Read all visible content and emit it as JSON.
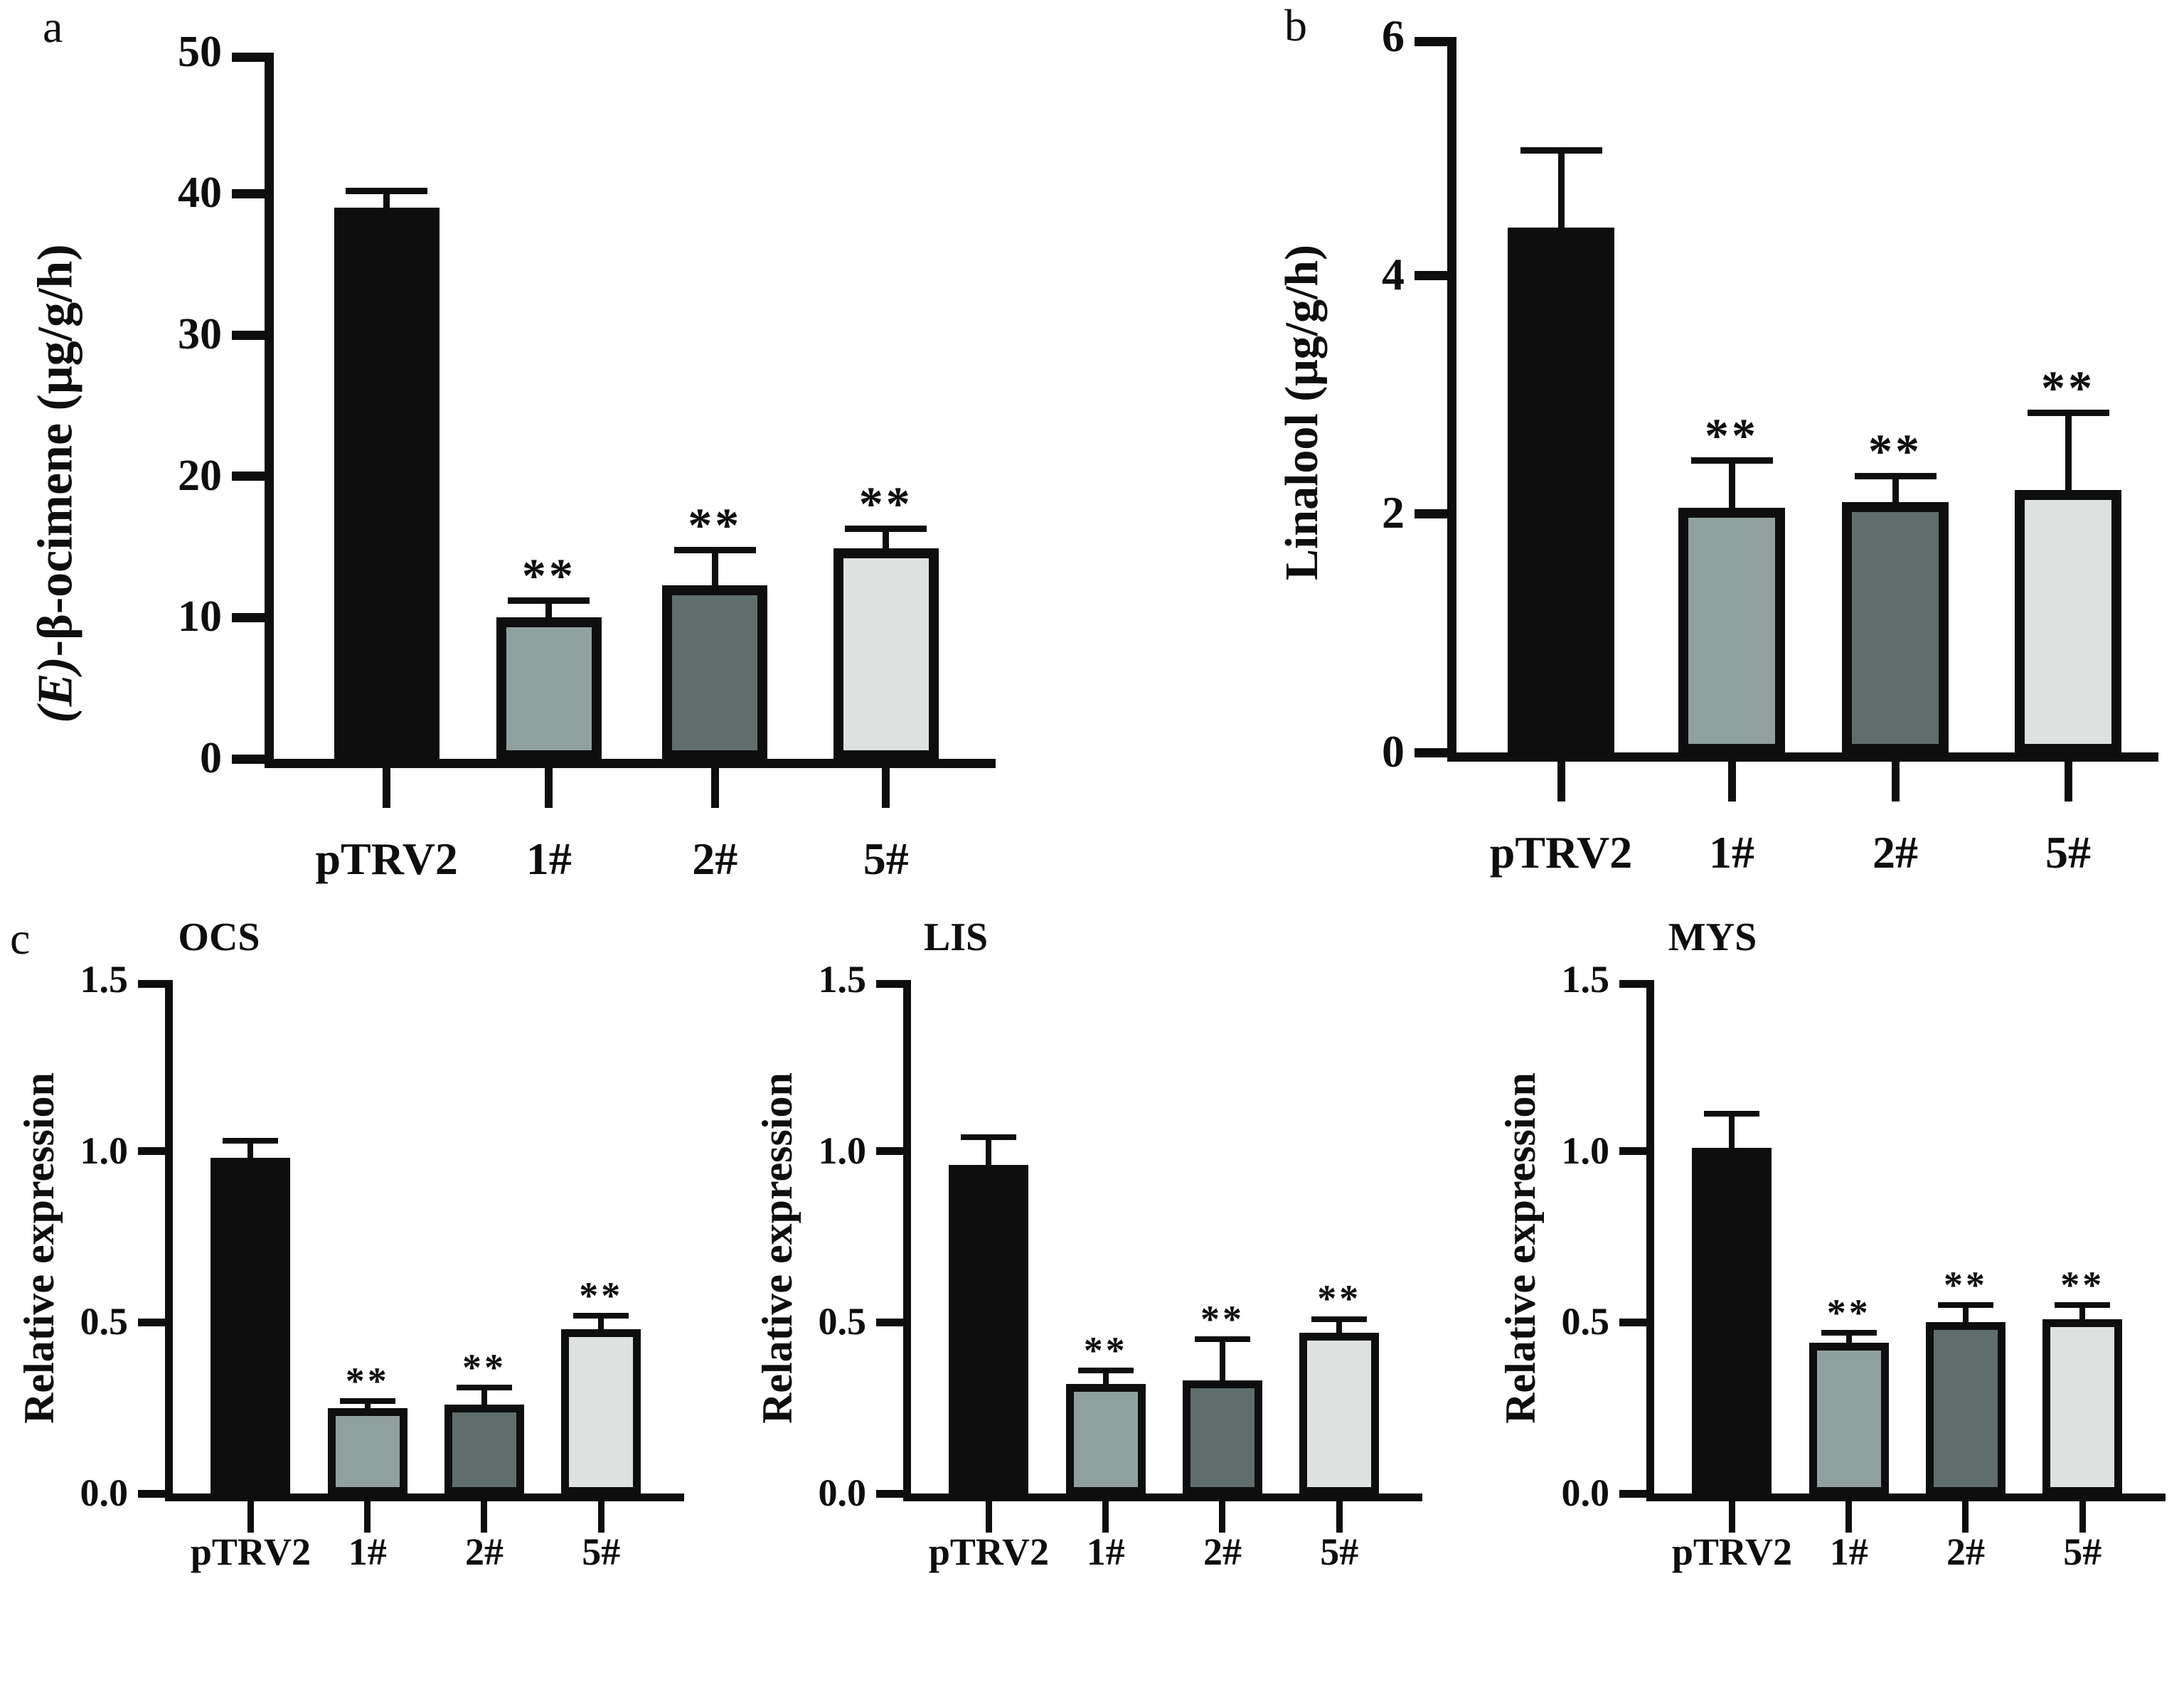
{
  "figure": {
    "panel_letters": {
      "a": "a",
      "b": "b",
      "c": "c"
    },
    "bar_colors": [
      "#0e0e0e",
      "#8fa09f",
      "#5f6e6c",
      "#dde1e0"
    ],
    "bar_border_color": "#0e0e0e",
    "axis_color": "#0e0e0e",
    "background": "#ffffff"
  },
  "chart_data": [
    {
      "id": "a",
      "type": "bar",
      "title": "",
      "ylabel_italic": "(E)",
      "ylabel": "-β-ocimene (μg/g/h)",
      "xlabel": "",
      "categories": [
        "pTRV2",
        "1#",
        "2#",
        "5#"
      ],
      "values": [
        39,
        10,
        12.3,
        14.9
      ],
      "errors": [
        1.2,
        1.2,
        2.5,
        1.4
      ],
      "sig": [
        "",
        "**",
        "**",
        "**"
      ],
      "ylim": [
        0,
        50
      ],
      "yticks": [
        "0",
        "10",
        "20",
        "30",
        "40",
        "50"
      ],
      "grid": false,
      "legend": false
    },
    {
      "id": "b",
      "type": "bar",
      "title": "",
      "ylabel_italic": "",
      "ylabel": "Linalool (μg/g/h)",
      "xlabel": "",
      "categories": [
        "pTRV2",
        "1#",
        "2#",
        "5#"
      ],
      "values": [
        4.4,
        2.05,
        2.1,
        2.2
      ],
      "errors": [
        0.65,
        0.4,
        0.22,
        0.65
      ],
      "sig": [
        "",
        "**",
        "**",
        "**"
      ],
      "ylim": [
        0,
        6
      ],
      "yticks": [
        "0",
        "2",
        "4",
        "6"
      ],
      "grid": false,
      "legend": false
    },
    {
      "id": "ocs",
      "type": "bar",
      "title": "OCS",
      "ylabel_italic": "",
      "ylabel": "Relative expression",
      "xlabel": "",
      "categories": [
        "pTRV2",
        "1#",
        "2#",
        "5#"
      ],
      "values": [
        0.98,
        0.25,
        0.26,
        0.48
      ],
      "errors": [
        0.05,
        0.02,
        0.05,
        0.04
      ],
      "sig": [
        "",
        "**",
        "**",
        "**"
      ],
      "ylim": [
        0,
        1.5
      ],
      "yticks": [
        "0.0",
        "0.5",
        "1.0",
        "1.5"
      ],
      "grid": false,
      "legend": false
    },
    {
      "id": "lis",
      "type": "bar",
      "title": "LIS",
      "ylabel_italic": "",
      "ylabel": "Relative expression",
      "xlabel": "",
      "categories": [
        "pTRV2",
        "1#",
        "2#",
        "5#"
      ],
      "values": [
        0.96,
        0.32,
        0.33,
        0.47
      ],
      "errors": [
        0.08,
        0.04,
        0.12,
        0.04
      ],
      "sig": [
        "",
        "**",
        "**",
        "**"
      ],
      "ylim": [
        0,
        1.5
      ],
      "yticks": [
        "0.0",
        "0.5",
        "1.0",
        "1.5"
      ],
      "grid": false,
      "legend": false
    },
    {
      "id": "mys",
      "type": "bar",
      "title": "MYS",
      "ylabel_italic": "",
      "ylabel": "Relative expression",
      "xlabel": "",
      "categories": [
        "pTRV2",
        "1#",
        "2#",
        "5#"
      ],
      "values": [
        1.01,
        0.44,
        0.5,
        0.51
      ],
      "errors": [
        0.1,
        0.03,
        0.05,
        0.04
      ],
      "sig": [
        "",
        "**",
        "**",
        "**"
      ],
      "ylim": [
        0,
        1.5
      ],
      "yticks": [
        "0.0",
        "0.5",
        "1.0",
        "1.5"
      ],
      "grid": false,
      "legend": false
    }
  ]
}
